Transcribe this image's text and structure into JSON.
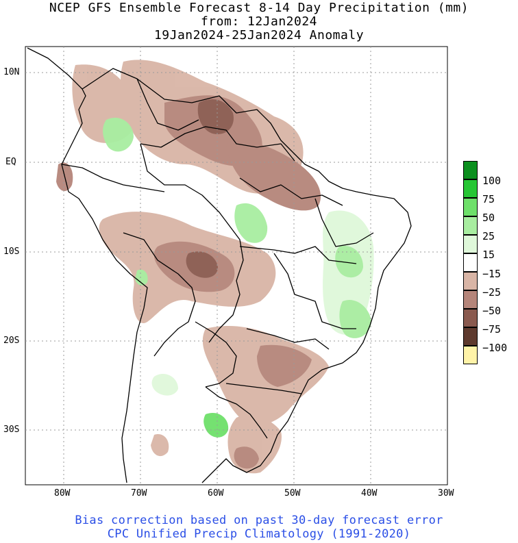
{
  "header": {
    "line1": "NCEP GFS Ensemble Forecast 8-14 Day Precipitation (mm)",
    "line2": "from: 12Jan2024",
    "line3": "19Jan2024-25Jan2024 Anomaly"
  },
  "axes": {
    "lat_labels": [
      "10N",
      "EQ",
      "10S",
      "20S",
      "30S"
    ],
    "lon_labels": [
      "80W",
      "70W",
      "60W",
      "50W",
      "40W",
      "30W"
    ]
  },
  "legend": {
    "items": [
      {
        "label": "100",
        "color": "#0b8f1e"
      },
      {
        "label": "75",
        "color": "#26c634"
      },
      {
        "label": "50",
        "color": "#6ee06a"
      },
      {
        "label": "25",
        "color": "#a8eda0"
      },
      {
        "label": "15",
        "color": "#dff8da"
      },
      {
        "label": "−15",
        "color": "#ffffff"
      },
      {
        "label": "−25",
        "color": "#d9b5a6"
      },
      {
        "label": "−50",
        "color": "#b5857a"
      },
      {
        "label": "−75",
        "color": "#8a5a4f"
      },
      {
        "label": "−100",
        "color": "#5e3a2e"
      },
      {
        "label": "",
        "color": "#fff3a8"
      }
    ]
  },
  "footer": {
    "line1": "Bias correction based on past 30-day forecast error",
    "line2": "CPC Unified Precip Climatology (1991-2020)"
  },
  "colors": {
    "dry_light": "#d9b5a6",
    "dry_mid": "#b5857a",
    "dry_dark": "#8a5a4f",
    "wet_light": "#dff8da",
    "wet_mid": "#a8eda0",
    "wet_strong": "#6ee06a",
    "footer_text": "#2a4ee6"
  }
}
